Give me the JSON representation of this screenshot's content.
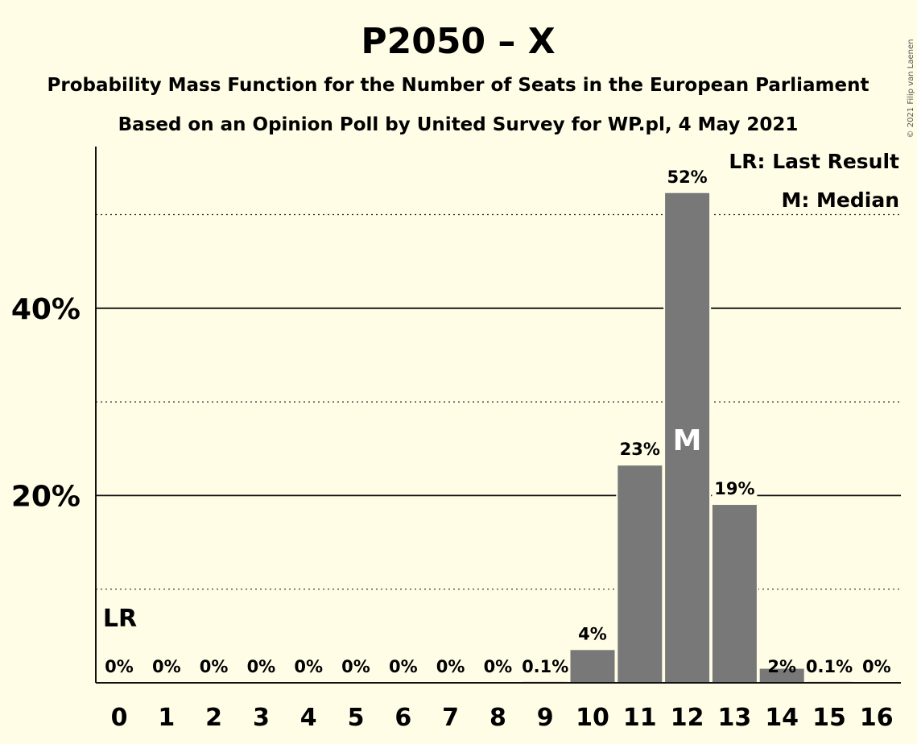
{
  "chart_data": {
    "type": "bar",
    "title": "P2050 – X",
    "subtitle_1": "Probability Mass Function for the Number of Seats in the European Parliament",
    "subtitle_2": "Based on an Opinion Poll by United Survey for WP.pl, 4 May 2021",
    "copyright": "© 2021 Filip van Laenen",
    "legend": {
      "lr": "LR: Last Result",
      "m": "M: Median"
    },
    "categories": [
      "0",
      "1",
      "2",
      "3",
      "4",
      "5",
      "6",
      "7",
      "8",
      "9",
      "10",
      "11",
      "12",
      "13",
      "14",
      "15",
      "16"
    ],
    "values": [
      0,
      0,
      0,
      0,
      0,
      0,
      0,
      0,
      0,
      0.1,
      3.5,
      23.2,
      52.3,
      19.0,
      1.5,
      0.1,
      0
    ],
    "data_labels": [
      "0%",
      "0%",
      "0%",
      "0%",
      "0%",
      "0%",
      "0%",
      "0%",
      "0%",
      "0.1%",
      "4%",
      "23%",
      "52%",
      "19%",
      "2%",
      "0.1%",
      "0%"
    ],
    "yticks": [
      {
        "value": 20,
        "label": "20%"
      },
      {
        "value": 40,
        "label": "40%"
      }
    ],
    "ylim": [
      0,
      57
    ],
    "solid_gridlines": [
      20,
      40
    ],
    "dotted_gridlines": [
      10,
      20,
      30,
      50
    ],
    "last_result_category": "0",
    "last_result_marker": "LR",
    "median_category": "12",
    "median_marker": "M",
    "bar_color": "#787878",
    "background_color": "#FFFDE6"
  }
}
